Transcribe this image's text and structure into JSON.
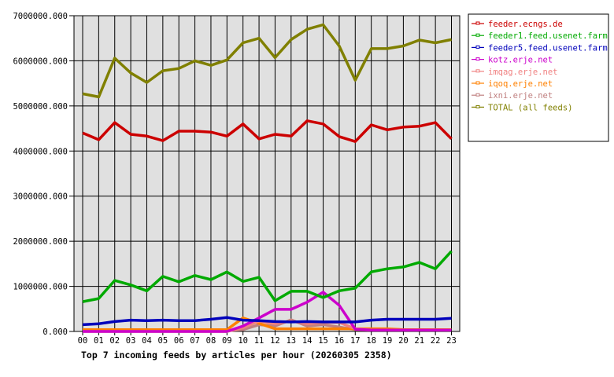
{
  "chart_data": {
    "type": "line",
    "title": "Top 7 incoming feeds by articles per hour (20260305 2358)",
    "xlabel": "",
    "ylabel": "",
    "ylim": [
      0,
      7000000
    ],
    "yticks": [
      "0.000",
      "1000000.000",
      "2000000.000",
      "3000000.000",
      "4000000.000",
      "5000000.000",
      "6000000.000",
      "7000000.000"
    ],
    "grid": true,
    "legend_position": "right",
    "categories": [
      "00",
      "01",
      "02",
      "03",
      "04",
      "05",
      "06",
      "07",
      "08",
      "09",
      "10",
      "11",
      "12",
      "13",
      "14",
      "15",
      "16",
      "17",
      "18",
      "19",
      "20",
      "21",
      "22",
      "23"
    ],
    "series": [
      {
        "name": "feeder.ecngs.de",
        "color": "#cc0000",
        "values": [
          4400000,
          4250000,
          4630000,
          4370000,
          4330000,
          4230000,
          4440000,
          4440000,
          4420000,
          4330000,
          4600000,
          4270000,
          4370000,
          4330000,
          4670000,
          4600000,
          4320000,
          4210000,
          4580000,
          4470000,
          4530000,
          4550000,
          4630000,
          4270000
        ]
      },
      {
        "name": "feeder1.feed.usenet.farm",
        "color": "#00aa00",
        "values": [
          660000,
          730000,
          1130000,
          1030000,
          900000,
          1220000,
          1100000,
          1240000,
          1150000,
          1320000,
          1110000,
          1200000,
          680000,
          890000,
          890000,
          750000,
          900000,
          960000,
          1320000,
          1390000,
          1430000,
          1530000,
          1390000,
          1780000
        ]
      },
      {
        "name": "feeder5.feed.usenet.farm",
        "color": "#0000bb",
        "values": [
          150000,
          170000,
          220000,
          250000,
          240000,
          250000,
          240000,
          240000,
          270000,
          310000,
          250000,
          240000,
          220000,
          210000,
          220000,
          210000,
          210000,
          210000,
          250000,
          270000,
          270000,
          270000,
          270000,
          290000
        ]
      },
      {
        "name": "kotz.erje.net",
        "color": "#cc00cc",
        "values": [
          0,
          0,
          0,
          0,
          0,
          0,
          0,
          0,
          0,
          0,
          120000,
          300000,
          490000,
          490000,
          650000,
          870000,
          580000,
          50000,
          30000,
          30000,
          30000,
          30000,
          30000,
          30000
        ]
      },
      {
        "name": "imqag.erje.net",
        "color": "#f08080",
        "values": [
          0,
          0,
          0,
          0,
          0,
          0,
          0,
          0,
          0,
          0,
          80000,
          230000,
          170000,
          230000,
          170000,
          200000,
          200000,
          60000,
          30000,
          30000,
          30000,
          30000,
          30000,
          30000
        ]
      },
      {
        "name": "iqoq.erje.net",
        "color": "#ff8000",
        "values": [
          40000,
          40000,
          40000,
          40000,
          40000,
          40000,
          40000,
          40000,
          40000,
          40000,
          300000,
          180000,
          60000,
          60000,
          60000,
          60000,
          60000,
          60000,
          60000,
          60000,
          40000,
          40000,
          40000,
          40000
        ]
      },
      {
        "name": "ixni.erje.net",
        "color": "#c08080",
        "values": [
          20000,
          20000,
          20000,
          20000,
          20000,
          20000,
          20000,
          20000,
          20000,
          20000,
          40000,
          150000,
          120000,
          260000,
          120000,
          150000,
          100000,
          40000,
          30000,
          30000,
          30000,
          30000,
          30000,
          30000
        ]
      },
      {
        "name": "TOTAL (all feeds)",
        "color": "#808000",
        "values": [
          5270000,
          5200000,
          6060000,
          5730000,
          5520000,
          5780000,
          5830000,
          6000000,
          5900000,
          6020000,
          6400000,
          6500000,
          6070000,
          6470000,
          6700000,
          6800000,
          6330000,
          5570000,
          6270000,
          6270000,
          6330000,
          6460000,
          6400000,
          6470000
        ]
      }
    ]
  }
}
